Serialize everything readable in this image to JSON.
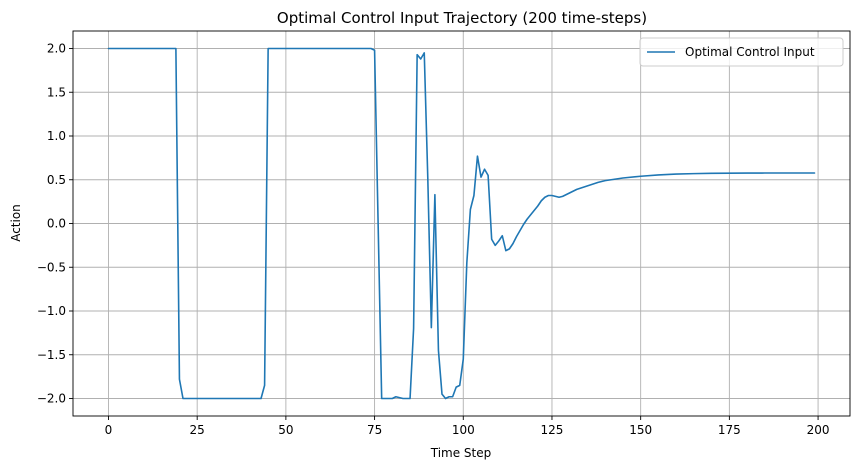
{
  "chart_data": {
    "type": "line",
    "title": "Optimal Control Input Trajectory (200 time-steps)",
    "xlabel": "Time Step",
    "ylabel": "Action",
    "xlim": [
      -10,
      209
    ],
    "ylim": [
      -2.2,
      2.2
    ],
    "xticks": [
      0,
      25,
      50,
      75,
      100,
      125,
      150,
      175,
      200
    ],
    "yticks": [
      -2.0,
      -1.5,
      -1.0,
      -0.5,
      0.0,
      0.5,
      1.0,
      1.5,
      2.0
    ],
    "xtick_labels": [
      "0",
      "25",
      "50",
      "75",
      "100",
      "125",
      "150",
      "175",
      "200"
    ],
    "ytick_labels": [
      "−2.0",
      "−1.5",
      "−1.0",
      "−0.5",
      "0.0",
      "0.5",
      "1.0",
      "1.5",
      "2.0"
    ],
    "grid": true,
    "legend_position": "top-right",
    "series": [
      {
        "name": "Optimal Control Input",
        "color": "#1f77b4",
        "x": [
          0,
          19,
          20,
          21,
          25,
          30,
          35,
          40,
          43,
          44,
          45,
          46,
          50,
          55,
          60,
          65,
          70,
          74,
          75,
          76,
          77,
          80,
          81,
          83,
          85,
          86,
          87,
          88,
          89,
          90,
          91,
          92,
          93,
          94,
          95,
          96,
          97,
          98,
          99,
          100,
          101,
          102,
          103,
          104,
          105,
          106,
          107,
          108,
          109,
          110,
          111,
          112,
          113,
          114,
          115,
          116,
          117,
          118,
          119,
          120,
          121,
          122,
          123,
          124,
          125,
          126,
          127,
          128,
          129,
          130,
          132,
          135,
          138,
          140,
          145,
          150,
          155,
          160,
          165,
          170,
          175,
          180,
          185,
          190,
          195,
          199
        ],
        "y": [
          2.0,
          2.0,
          -1.78,
          -2.0,
          -2.0,
          -2.0,
          -2.0,
          -2.0,
          -2.0,
          -1.85,
          2.0,
          2.0,
          2.0,
          2.0,
          2.0,
          2.0,
          2.0,
          2.0,
          1.98,
          0.0,
          -2.0,
          -2.0,
          -1.98,
          -2.0,
          -2.0,
          -1.2,
          1.93,
          1.88,
          1.95,
          0.52,
          -1.19,
          0.33,
          -1.45,
          -1.95,
          -2.0,
          -1.98,
          -1.98,
          -1.87,
          -1.85,
          -1.55,
          -0.45,
          0.16,
          0.32,
          0.77,
          0.53,
          0.62,
          0.55,
          -0.18,
          -0.25,
          -0.2,
          -0.14,
          -0.31,
          -0.29,
          -0.23,
          -0.15,
          -0.08,
          -0.01,
          0.05,
          0.1,
          0.15,
          0.2,
          0.26,
          0.3,
          0.32,
          0.32,
          0.31,
          0.3,
          0.31,
          0.33,
          0.35,
          0.39,
          0.43,
          0.47,
          0.49,
          0.52,
          0.54,
          0.555,
          0.565,
          0.57,
          0.573,
          0.575,
          0.576,
          0.577,
          0.577,
          0.577,
          0.577
        ]
      }
    ]
  }
}
